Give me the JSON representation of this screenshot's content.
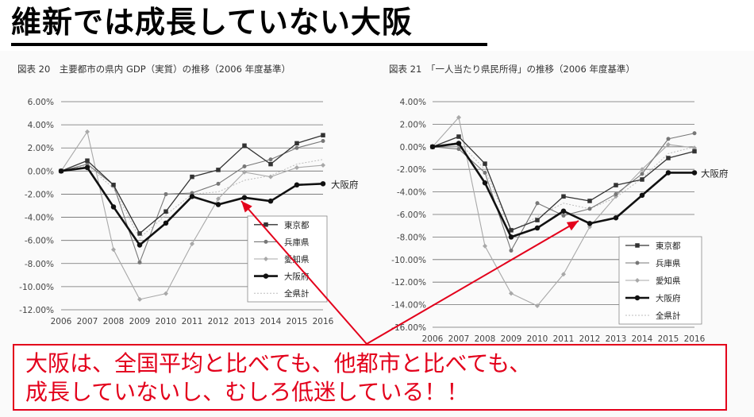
{
  "page_title": "維新では成長していない大阪",
  "colors": {
    "accent_red": "#e3001b",
    "ink": "#222222",
    "osaka": "#111111",
    "tokyo": "#333333",
    "hyogo": "#777777",
    "aichi": "#a8a8a8",
    "all": "#bdbdbd"
  },
  "chart_data": [
    {
      "type": "line",
      "title": "図表 20　主要都市の県内 GDP（実質）の推移（2006 年度基準）",
      "x": [
        "2006",
        "2007",
        "2008",
        "2009",
        "2010",
        "2011",
        "2012",
        "2013",
        "2014",
        "2015",
        "2016"
      ],
      "ylim": [
        -12,
        6
      ],
      "yticks": [
        "6.00%",
        "4.00%",
        "2.00%",
        "0.00%",
        "-2.00%",
        "-4.00%",
        "-6.00%",
        "-8.00%",
        "-10.00%",
        "-12.00%"
      ],
      "ytick_values": [
        6,
        4,
        2,
        0,
        -2,
        -4,
        -6,
        -8,
        -10,
        -12
      ],
      "grid": true,
      "legend": "bottom-right",
      "end_label": "大阪府",
      "series": [
        {
          "name": "東京都",
          "marker": "square",
          "values": [
            0,
            0.9,
            -1.2,
            -5.4,
            -3.5,
            -0.5,
            0.1,
            2.2,
            0.6,
            2.4,
            3.1
          ]
        },
        {
          "name": "兵庫県",
          "marker": "circle",
          "values": [
            0,
            0.6,
            -1.2,
            -7.9,
            -2.0,
            -1.9,
            -1.1,
            0.4,
            1.0,
            2.0,
            2.6
          ]
        },
        {
          "name": "愛知県",
          "marker": "diamond",
          "values": [
            0,
            3.4,
            -6.8,
            -11.1,
            -10.6,
            -6.3,
            -2.4,
            -0.1,
            -0.5,
            0.3,
            0.5
          ]
        },
        {
          "name": "大阪府",
          "marker": "circle",
          "values": [
            0,
            0.3,
            -3.1,
            -6.4,
            -4.5,
            -2.2,
            -2.9,
            -2.3,
            -2.6,
            -1.2,
            -1.1
          ]
        },
        {
          "name": "全県計",
          "marker": "none",
          "values": [
            0,
            0.5,
            -1.5,
            -5.8,
            -3.8,
            -2.0,
            -1.8,
            -0.8,
            -0.4,
            0.6,
            1.0
          ]
        }
      ]
    },
    {
      "type": "line",
      "title": "図表 21　「一人当たり県民所得」の推移（2006 年度基準）",
      "x": [
        "2006",
        "2007",
        "2008",
        "2009",
        "2010",
        "2011",
        "2012",
        "2013",
        "2014",
        "2015",
        "2016"
      ],
      "ylim": [
        -16,
        4
      ],
      "yticks": [
        "4.00%",
        "2.00%",
        "0.00%",
        "-2.00%",
        "-4.00%",
        "-6.00%",
        "-8.00%",
        "-10.00%",
        "-12.00%",
        "-14.00%",
        "-16.00%"
      ],
      "ytick_values": [
        4,
        2,
        0,
        -2,
        -4,
        -6,
        -8,
        -10,
        -12,
        -14,
        -16
      ],
      "grid": true,
      "legend": "bottom-right",
      "end_label": "大阪府",
      "series": [
        {
          "name": "東京都",
          "marker": "square",
          "values": [
            0,
            0.9,
            -1.5,
            -7.4,
            -6.5,
            -4.4,
            -4.8,
            -3.4,
            -2.9,
            -1.0,
            -0.4
          ]
        },
        {
          "name": "兵庫県",
          "marker": "circle",
          "values": [
            0,
            -0.2,
            -2.3,
            -9.2,
            -5.0,
            -6.1,
            -5.5,
            -4.2,
            -2.4,
            0.7,
            1.2
          ]
        },
        {
          "name": "愛知県",
          "marker": "diamond",
          "values": [
            0,
            2.6,
            -8.8,
            -13.0,
            -14.1,
            -11.3,
            -7.1,
            -4.4,
            -2.0,
            0.2,
            -0.1
          ]
        },
        {
          "name": "大阪府",
          "marker": "circle",
          "values": [
            0,
            0.3,
            -3.2,
            -8.0,
            -7.2,
            -5.7,
            -6.8,
            -6.3,
            -4.3,
            -2.3,
            -2.3
          ]
        },
        {
          "name": "全県計",
          "marker": "none",
          "values": [
            0,
            0.4,
            -2.0,
            -7.5,
            -6.2,
            -5.0,
            -5.5,
            -4.5,
            -2.8,
            -0.6,
            0.0
          ]
        }
      ]
    }
  ],
  "callout": {
    "line1": "大阪は、全国平均と比べても、他都市と比べても、",
    "line2": "成長していないし、むしろ低迷している！！"
  }
}
